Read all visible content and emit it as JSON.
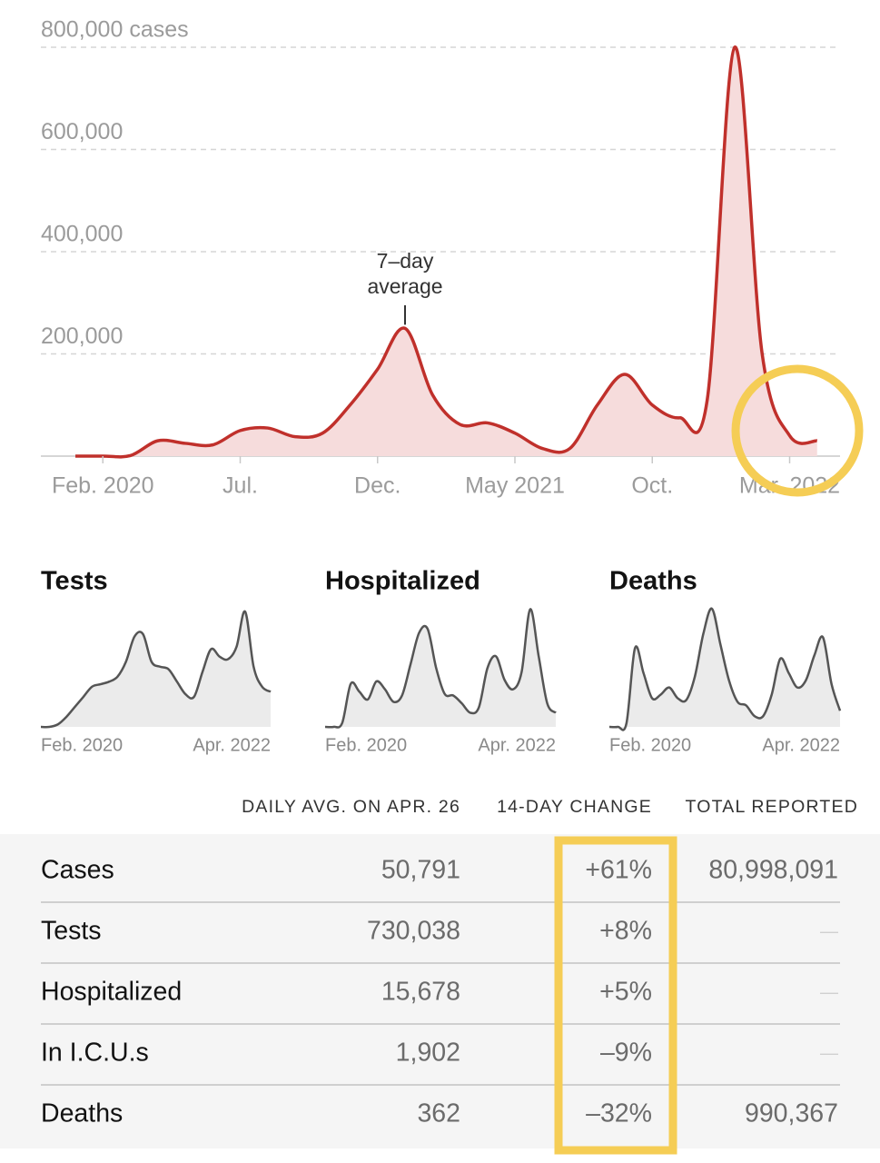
{
  "chart_data": [
    {
      "type": "line",
      "area": true,
      "color": "#c0302b",
      "fill": "#f6dcdc",
      "x": [
        "2020-01",
        "2020-02",
        "2020-03",
        "2020-04",
        "2020-05",
        "2020-06",
        "2020-07",
        "2020-08",
        "2020-09",
        "2020-10",
        "2020-11",
        "2020-12",
        "2021-01",
        "2021-02",
        "2021-03",
        "2021-04",
        "2021-05",
        "2021-06",
        "2021-07",
        "2021-08",
        "2021-09",
        "2021-10",
        "2021-11",
        "2021-12",
        "2022-01",
        "2022-02",
        "2022-03",
        "2022-04"
      ],
      "values": [
        0,
        0,
        1000,
        30000,
        25000,
        22000,
        50000,
        55000,
        38000,
        45000,
        100000,
        170000,
        250000,
        120000,
        62000,
        65000,
        45000,
        15000,
        15000,
        100000,
        160000,
        100000,
        75000,
        110000,
        800000,
        200000,
        40000,
        30000
      ],
      "xlim": [
        "2020-01",
        "2022-05"
      ],
      "xticks": [
        {
          "value": "2020-02",
          "label": "Feb. 2020"
        },
        {
          "value": "2020-07",
          "label": "Jul."
        },
        {
          "value": "2020-12",
          "label": "Dec."
        },
        {
          "value": "2021-05",
          "label": "May 2021"
        },
        {
          "value": "2021-10",
          "label": "Oct."
        },
        {
          "value": "2022-03",
          "label": "Mar. 2022"
        }
      ],
      "ylim": [
        0,
        800000
      ],
      "yticks": [
        {
          "value": 200000,
          "label": "200,000"
        },
        {
          "value": 400000,
          "label": "400,000"
        },
        {
          "value": 600000,
          "label": "600,000"
        },
        {
          "value": 800000,
          "label": "800,000 cases"
        }
      ],
      "grid": true,
      "annotation": {
        "lines": [
          "7–day",
          "average"
        ],
        "x": "2021-01"
      }
    },
    {
      "type": "area",
      "title": "Tests",
      "color": "#555555",
      "fill": "#ebebeb",
      "x": [
        "2020-01",
        "2020-02",
        "2020-03",
        "2020-04",
        "2020-05",
        "2020-06",
        "2020-07",
        "2020-08",
        "2020-09",
        "2020-10",
        "2020-11",
        "2020-12",
        "2021-01",
        "2021-02",
        "2021-03",
        "2021-04",
        "2021-05",
        "2021-06",
        "2021-07",
        "2021-08",
        "2021-09",
        "2021-10",
        "2021-11",
        "2021-12",
        "2022-01",
        "2022-02",
        "2022-03",
        "2022-04"
      ],
      "values": [
        0,
        0,
        50000,
        200000,
        400000,
        600000,
        800000,
        850000,
        900000,
        1000000,
        1300000,
        1800000,
        1850000,
        1300000,
        1200000,
        1150000,
        900000,
        650000,
        600000,
        1100000,
        1550000,
        1400000,
        1350000,
        1600000,
        2300000,
        1200000,
        800000,
        700000
      ],
      "xlim": [
        "2020-01",
        "2022-04"
      ],
      "ylim": [
        0,
        2500000
      ],
      "xticks": [
        {
          "value": "2020-02",
          "label": "Feb. 2020"
        },
        {
          "value": "2022-04",
          "label": "Apr. 2022"
        }
      ]
    },
    {
      "type": "area",
      "title": "Hospitalized",
      "color": "#555555",
      "fill": "#ebebeb",
      "x": [
        "2020-01",
        "2020-02",
        "2020-03",
        "2020-04",
        "2020-05",
        "2020-06",
        "2020-07",
        "2020-08",
        "2020-09",
        "2020-10",
        "2020-11",
        "2020-12",
        "2021-01",
        "2021-02",
        "2021-03",
        "2021-04",
        "2021-05",
        "2021-06",
        "2021-07",
        "2021-08",
        "2021-09",
        "2021-10",
        "2021-11",
        "2021-12",
        "2022-01",
        "2022-02",
        "2022-03",
        "2022-04"
      ],
      "values": [
        0,
        0,
        5000,
        55000,
        45000,
        35000,
        58000,
        48000,
        32000,
        40000,
        80000,
        120000,
        125000,
        75000,
        42000,
        40000,
        30000,
        18000,
        25000,
        75000,
        90000,
        60000,
        48000,
        70000,
        150000,
        90000,
        30000,
        18000
      ],
      "xlim": [
        "2020-01",
        "2022-04"
      ],
      "ylim": [
        0,
        160000
      ],
      "xticks": [
        {
          "value": "2020-02",
          "label": "Feb. 2020"
        },
        {
          "value": "2022-04",
          "label": "Apr. 2022"
        }
      ]
    },
    {
      "type": "area",
      "title": "Deaths",
      "color": "#555555",
      "fill": "#ebebeb",
      "x": [
        "2020-01",
        "2020-02",
        "2020-03",
        "2020-04",
        "2020-05",
        "2020-06",
        "2020-07",
        "2020-08",
        "2020-09",
        "2020-10",
        "2020-11",
        "2020-12",
        "2021-01",
        "2021-02",
        "2021-03",
        "2021-04",
        "2021-05",
        "2021-06",
        "2021-07",
        "2021-08",
        "2021-09",
        "2021-10",
        "2021-11",
        "2021-12",
        "2022-01",
        "2022-02",
        "2022-03",
        "2022-04"
      ],
      "values": [
        0,
        0,
        100,
        2200,
        1500,
        800,
        900,
        1100,
        800,
        750,
        1400,
        2600,
        3300,
        2300,
        1300,
        700,
        600,
        300,
        300,
        900,
        1900,
        1500,
        1100,
        1300,
        2000,
        2500,
        1200,
        450
      ],
      "xlim": [
        "2020-01",
        "2022-04"
      ],
      "ylim": [
        0,
        3500
      ],
      "xticks": [
        {
          "value": "2020-02",
          "label": "Feb. 2020"
        },
        {
          "value": "2022-04",
          "label": "Apr. 2022"
        }
      ]
    }
  ],
  "table": {
    "headers": [
      "DAILY AVG. ON APR. 26",
      "14-DAY CHANGE",
      "TOTAL REPORTED"
    ],
    "rows": [
      [
        "Cases",
        "50,791",
        "+61%",
        "80,998,091"
      ],
      [
        "Tests",
        "730,038",
        "+8%",
        "—"
      ],
      [
        "Hospitalized",
        "15,678",
        "+5%",
        "—"
      ],
      [
        "In I.C.U.s",
        "1,902",
        "–9%",
        "—"
      ],
      [
        "Deaths",
        "362",
        "–32%",
        "990,367"
      ]
    ]
  }
}
